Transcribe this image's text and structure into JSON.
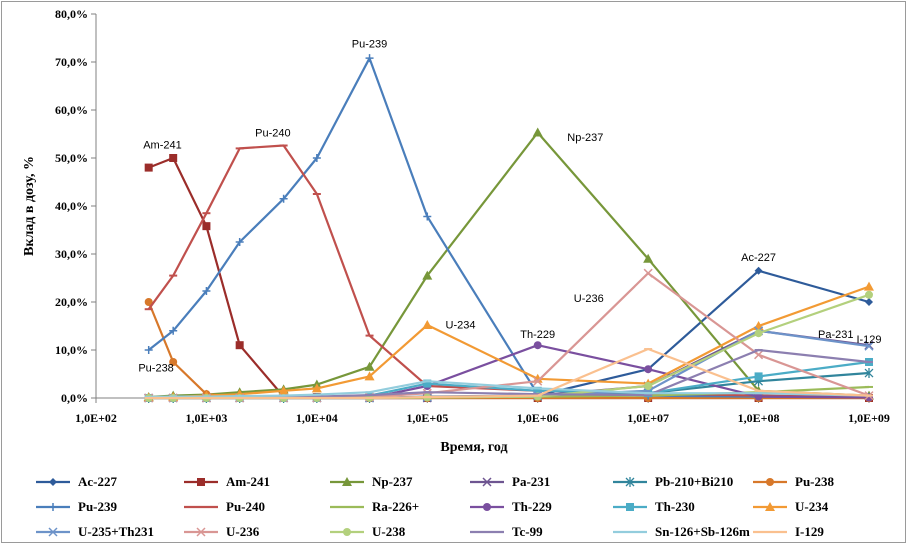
{
  "chart_data": {
    "type": "line",
    "title": "",
    "xlabel": "Время, год",
    "ylabel": "Вклад в дозу, %",
    "x_scale": "log",
    "xlim": [
      100,
      1000000000
    ],
    "ylim": [
      0,
      80
    ],
    "x_tick_labels": [
      "1,0E+02",
      "1,0E+03",
      "1,0E+04",
      "1,0E+05",
      "1,0E+06",
      "1,0E+07",
      "1,0E+08",
      "1,0E+09"
    ],
    "y_tick_labels": [
      "0,0%",
      "10,0%",
      "20,0%",
      "30,0%",
      "40,0%",
      "50,0%",
      "60,0%",
      "70,0%",
      "80,0%"
    ],
    "y_ticks": [
      0,
      10,
      20,
      30,
      40,
      50,
      60,
      70,
      80
    ],
    "x": [
      300,
      500,
      1000,
      2000,
      5000,
      10000,
      30000,
      100000,
      1000000,
      10000000,
      100000000,
      1000000000
    ],
    "series": [
      {
        "name": "Ac-227",
        "color": "#2e5b9a",
        "marker": "diamond",
        "values": [
          0,
          0,
          0,
          0,
          0,
          0,
          0,
          0.3,
          0.5,
          6,
          26.5,
          20
        ]
      },
      {
        "name": "Am-241",
        "color": "#9b2d2a",
        "marker": "square",
        "values": [
          48,
          50,
          35.8,
          11,
          0.3,
          0.2,
          0,
          0,
          0,
          0,
          0,
          0
        ]
      },
      {
        "name": "Np-237",
        "color": "#77973a",
        "marker": "triangle",
        "values": [
          0.2,
          0.5,
          0.7,
          1.2,
          1.8,
          2.8,
          6.5,
          25.5,
          55.3,
          29,
          1.5,
          0.5
        ]
      },
      {
        "name": "Pa-231",
        "color": "#6e5591",
        "marker": "x",
        "values": [
          0,
          0,
          0,
          0,
          0,
          0,
          0,
          0,
          0.5,
          2.5,
          14,
          11
        ]
      },
      {
        "name": "Pb-210+Bi210",
        "color": "#31859c",
        "marker": "star",
        "values": [
          0,
          0,
          0,
          0,
          0,
          0,
          0,
          0.2,
          0.4,
          1,
          3.5,
          5.2
        ]
      },
      {
        "name": "Pu-238",
        "color": "#d7782a",
        "marker": "circle",
        "values": [
          20,
          7.5,
          0.8,
          0.3,
          0.2,
          0.1,
          0,
          0,
          0,
          0,
          0,
          0
        ]
      },
      {
        "name": "Pu-239",
        "color": "#4a7ebb",
        "marker": "plus",
        "values": [
          10,
          14,
          22.3,
          32.5,
          41.5,
          50,
          70.8,
          37.8,
          0.8,
          0.5,
          0.3,
          0.2
        ]
      },
      {
        "name": "Pu-240",
        "color": "#c0504d",
        "marker": "dash",
        "values": [
          18.5,
          25.5,
          38.5,
          52,
          52.6,
          42.5,
          13,
          2.5,
          1.5,
          1,
          0.5,
          0.2
        ]
      },
      {
        "name": "Ra-226+",
        "color": "#9bbb59",
        "marker": "dash",
        "values": [
          0,
          0,
          0,
          0,
          0,
          0,
          0,
          0.1,
          0.3,
          0.5,
          1.2,
          2.3
        ]
      },
      {
        "name": "Th-229",
        "color": "#7a4f9f",
        "marker": "circle",
        "values": [
          0,
          0,
          0,
          0,
          0,
          0,
          0,
          2.5,
          11,
          6,
          0.3,
          0.1
        ]
      },
      {
        "name": "Th-230",
        "color": "#4bacc6",
        "marker": "square",
        "values": [
          0,
          0,
          0,
          0,
          0,
          0,
          0.5,
          3,
          1.5,
          1,
          4.5,
          7.5
        ]
      },
      {
        "name": "U-234",
        "color": "#f29a34",
        "marker": "triangle",
        "values": [
          0.1,
          0.2,
          0.5,
          0.8,
          1.5,
          2,
          4.5,
          15.2,
          4,
          3,
          15,
          23.2
        ]
      },
      {
        "name": "U-235+Th231",
        "color": "#6d93c9",
        "marker": "x",
        "values": [
          0,
          0,
          0,
          0,
          0,
          0,
          0,
          0.2,
          0.5,
          1.5,
          14,
          10.8
        ]
      },
      {
        "name": "U-236",
        "color": "#d99694",
        "marker": "x",
        "values": [
          0,
          0,
          0,
          0,
          0,
          0,
          0.2,
          1,
          3.5,
          26,
          9,
          0.5
        ]
      },
      {
        "name": "U-238",
        "color": "#b3d07d",
        "marker": "circle",
        "values": [
          0,
          0,
          0,
          0,
          0,
          0,
          0,
          0.1,
          0.3,
          2.5,
          13.5,
          21.5
        ]
      },
      {
        "name": "Tc-99",
        "color": "#8c7fb0",
        "marker": "dash",
        "values": [
          0.1,
          0.1,
          0.1,
          0.1,
          0.2,
          0.3,
          0.6,
          1.2,
          0.8,
          0.6,
          10,
          7.5
        ]
      },
      {
        "name": "Sn-126+Sb-126m",
        "color": "#93cddd",
        "marker": "dash",
        "values": [
          0.2,
          0.3,
          0.3,
          0.4,
          0.5,
          0.7,
          1.2,
          3.5,
          2,
          1,
          1,
          0.5
        ]
      },
      {
        "name": "I-129",
        "color": "#fac08f",
        "marker": "dash",
        "values": [
          0,
          0,
          0,
          0,
          0,
          0,
          0,
          0.2,
          0.5,
          10.2,
          1.5,
          0.5
        ]
      }
    ],
    "annotations": [
      {
        "text": "Am-241",
        "x": 400,
        "y": 52
      },
      {
        "text": "Pu-240",
        "x": 4000,
        "y": 54.5
      },
      {
        "text": "Pu-239",
        "x": 30000,
        "y": 73
      },
      {
        "text": "Np-237",
        "x": 2700000,
        "y": 53.5
      },
      {
        "text": "U-236",
        "x": 2900000,
        "y": 20
      },
      {
        "text": "Ac-227",
        "x": 100000000,
        "y": 28.5
      },
      {
        "text": "Pa-231",
        "x": 500000000,
        "y": 12.5
      },
      {
        "text": "U-234",
        "x": 200000,
        "y": 14.5
      },
      {
        "text": "Th-229",
        "x": 1000000,
        "y": 12.5
      },
      {
        "text": "I-129",
        "x": 1000000000,
        "y": 11.5
      },
      {
        "text": "Pu-238",
        "x": 350,
        "y": 5.5
      }
    ],
    "grid": false,
    "legend_position": "bottom"
  }
}
